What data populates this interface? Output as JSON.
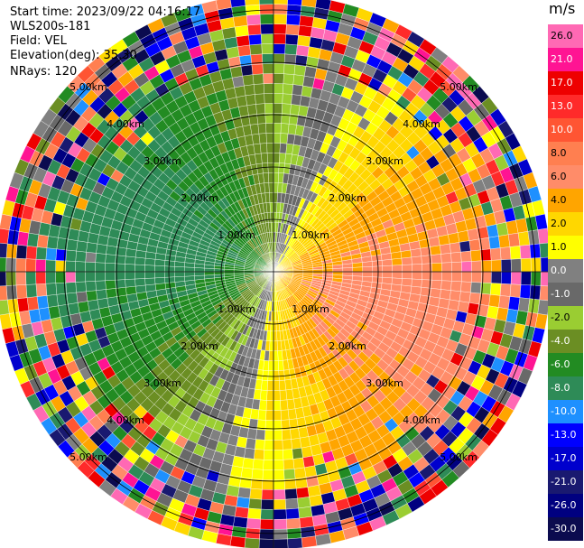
{
  "header": {
    "start_time": "Start time: 2023/09/22 04:16:17",
    "instrument": "WLS200s-181",
    "field": "Field: VEL",
    "elevation": "Elevation(deg): 35.30",
    "nrays": "NRays: 120"
  },
  "chart_data": {
    "type": "ppi",
    "field": "VEL",
    "units": "m/s",
    "nrays": 120,
    "elevation_deg": 35.3,
    "max_range_km": 5.3,
    "range_rings_km": [
      1,
      2,
      3,
      4,
      5
    ],
    "range_ring_labels": [
      "1.00km",
      "2.00km",
      "3.00km",
      "4.00km",
      "5.00km"
    ],
    "colorbar": {
      "ticks": [
        26.0,
        21.0,
        17.0,
        13.0,
        10.0,
        8.0,
        6.0,
        4.0,
        2.0,
        1.0,
        0.0,
        -1.0,
        -2.0,
        -4.0,
        -6.0,
        -8.0,
        -10.0,
        -13.0,
        -17.0,
        -21.0,
        -26.0,
        -30.0
      ],
      "tick_labels": [
        "26.0",
        "21.0",
        "17.0",
        "13.0",
        "10.0",
        "8.0",
        "6.0",
        "4.0",
        "2.0",
        "1.0",
        "0.0",
        "-1.0",
        "-2.0",
        "-4.0",
        "-6.0",
        "-8.0",
        "-10.0",
        "-13.0",
        "-17.0",
        "-21.0",
        "-26.0",
        "-30.0"
      ],
      "colors": [
        "#ff69b4",
        "#ff1493",
        "#ee0000",
        "#ff2a2a",
        "#ff5533",
        "#ff7f50",
        "#ff8c69",
        "#ffa500",
        "#ffd700",
        "#ffff00",
        "#808080",
        "#696969",
        "#9acd32",
        "#6b8e23",
        "#228b22",
        "#2e8b57",
        "#1e90ff",
        "#0000ff",
        "#0000cd",
        "#191970",
        "#000080",
        "#0b0b4f"
      ]
    },
    "wind_pattern": {
      "zero_isodop_bearing_deg": 17,
      "max_velocity_ms": 7
    }
  }
}
